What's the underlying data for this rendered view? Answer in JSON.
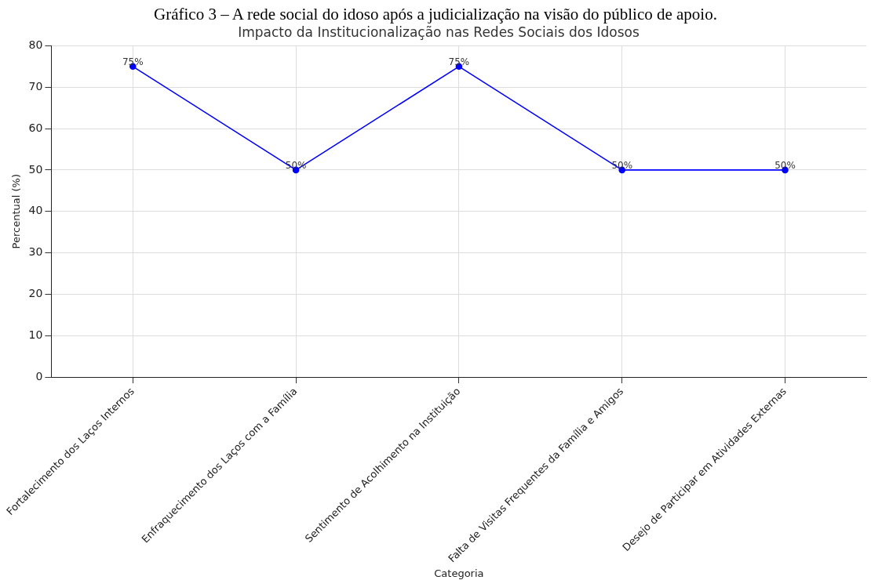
{
  "chart_data": {
    "type": "line",
    "title": "Impacto da Institucionalização nas Redes Sociais dos Idosos",
    "xlabel": "Categoria",
    "ylabel": "Percentual (%)",
    "annotations": [
      "Gráfico 3 – A rede social do idoso após a judicialização na visão do público de apoio."
    ],
    "categories": [
      "Fortalecimento dos Laços Internos",
      "Enfraquecimento dos Laços com a Família",
      "Sentimento de Acolhimento na Instituição",
      "Falta de Visitas Frequentes da Família e Amigos",
      "Desejo de Participar em Atividades Externas"
    ],
    "series": [
      {
        "color": "#0000ff",
        "values": [
          75,
          50,
          75,
          50,
          50
        ],
        "value_labels": [
          "75%",
          "50%",
          "75%",
          "50%",
          "50%"
        ]
      }
    ],
    "ylim": [
      0,
      80
    ],
    "yticks": [
      0,
      10,
      20,
      30,
      40,
      50,
      60,
      70,
      80
    ],
    "grid": true,
    "legend": false,
    "marker": "circle",
    "line_style": "solid"
  }
}
